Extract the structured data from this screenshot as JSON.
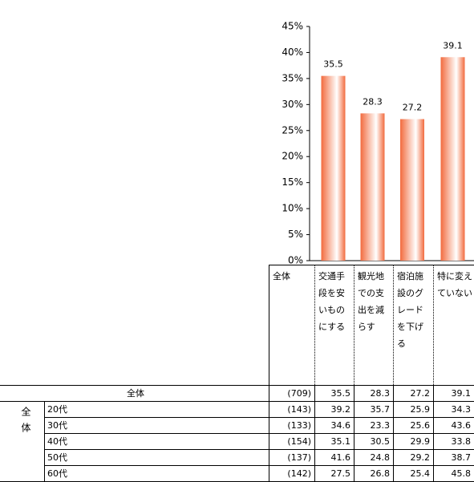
{
  "chart_data": {
    "type": "bar",
    "categories": [
      "交通手段を安いものにする",
      "観光地での支出を減らす",
      "宿泊施設のグレードを下げる",
      "特に変えていない"
    ],
    "values": [
      35.5,
      28.3,
      27.2,
      39.1
    ],
    "color": "#f26b3e",
    "ylim": [
      0,
      45
    ],
    "yticks": [
      {
        "value": 0,
        "label": "0%"
      },
      {
        "value": 5,
        "label": "5%"
      },
      {
        "value": 10,
        "label": "10%"
      },
      {
        "value": 15,
        "label": "15%"
      },
      {
        "value": 20,
        "label": "20%"
      },
      {
        "value": 25,
        "label": "25%"
      },
      {
        "value": 30,
        "label": "30%"
      },
      {
        "value": 35,
        "label": "35%"
      },
      {
        "value": 40,
        "label": "40%"
      },
      {
        "value": 45,
        "label": "45%"
      }
    ]
  },
  "table": {
    "corner_label": "全体",
    "group_label": "全体",
    "rows": [
      {
        "label": "全体",
        "n": "(709)",
        "values": [
          35.5,
          28.3,
          27.2,
          39.1
        ]
      },
      {
        "label": "20代",
        "n": "(143)",
        "values": [
          39.2,
          35.7,
          25.9,
          34.3
        ]
      },
      {
        "label": "30代",
        "n": "(133)",
        "values": [
          34.6,
          23.3,
          25.6,
          43.6
        ]
      },
      {
        "label": "40代",
        "n": "(154)",
        "values": [
          35.1,
          30.5,
          29.9,
          33.8
        ]
      },
      {
        "label": "50代",
        "n": "(137)",
        "values": [
          41.6,
          24.8,
          29.2,
          38.7
        ]
      },
      {
        "label": "60代",
        "n": "(142)",
        "values": [
          27.5,
          26.8,
          25.4,
          45.8
        ]
      }
    ]
  }
}
